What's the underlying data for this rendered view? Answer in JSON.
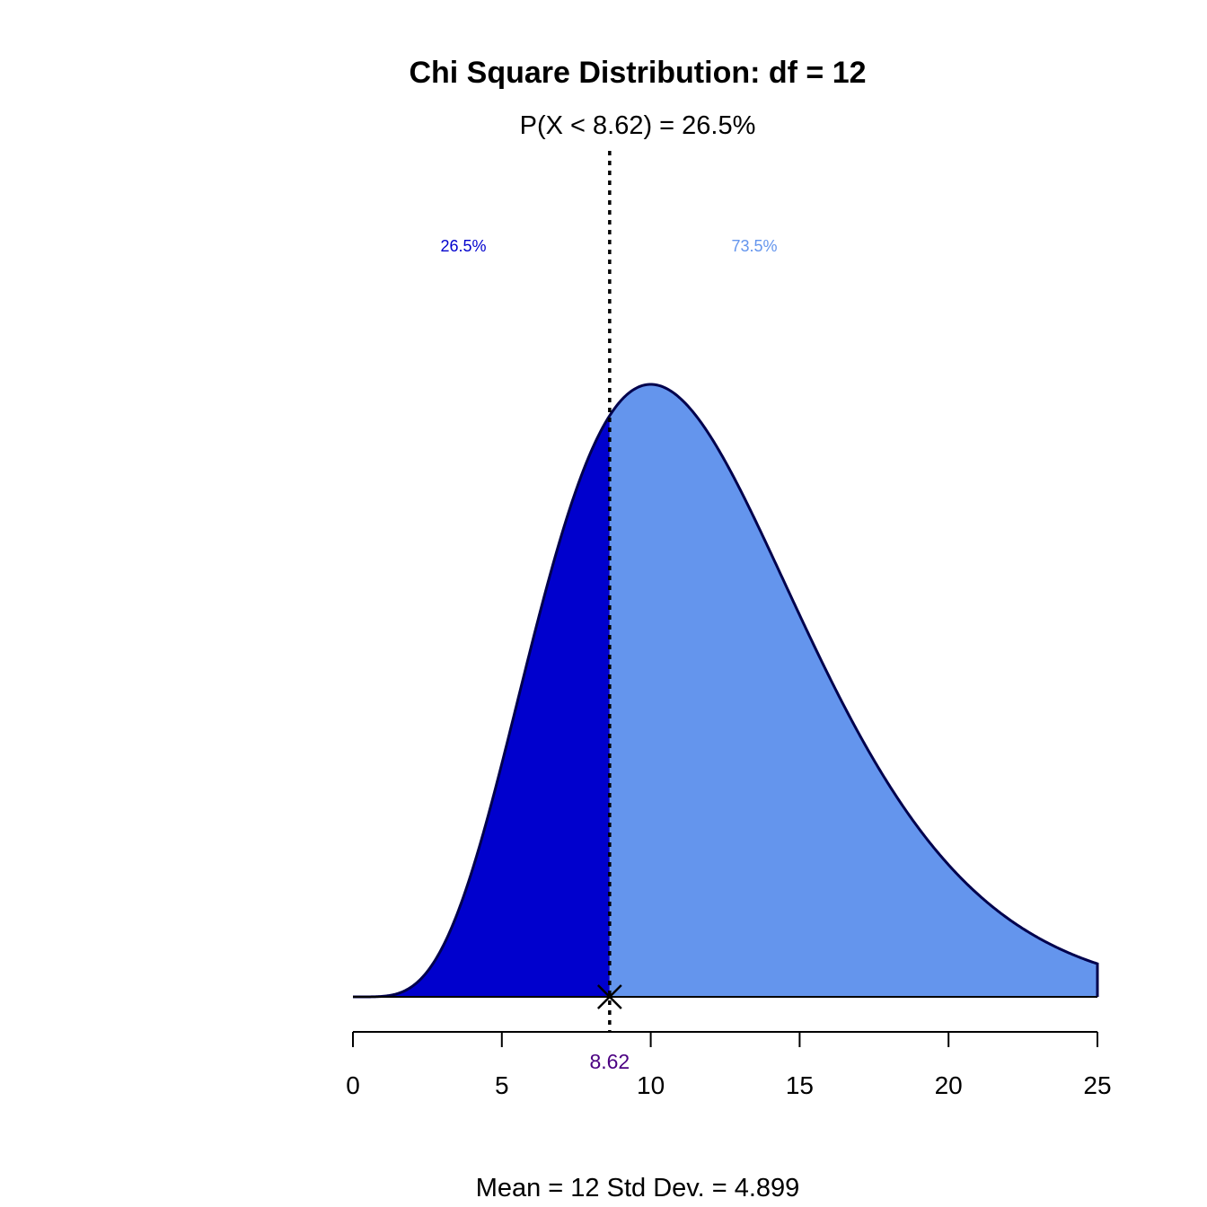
{
  "chart_data": {
    "type": "area",
    "title": "Chi Square Distribution: df = 12",
    "subtitle": "P(X < 8.62) = 26.5%",
    "df": 12,
    "cutoff": 8.62,
    "cutoff_label": "8.62",
    "left_area_label": "26.5%",
    "right_area_label": "73.5%",
    "footer": "Mean = 12  Std Dev. = 4.899",
    "xlim": [
      0,
      25
    ],
    "x_ticks": [
      0,
      5,
      10,
      15,
      20,
      25
    ],
    "x_tick_labels": [
      "0",
      "5",
      "10",
      "15",
      "20",
      "25"
    ],
    "grid": false,
    "colors": {
      "left_fill": "#0000CD",
      "right_fill": "#6495ED",
      "outline": "#00004D",
      "left_label": "#0000CD",
      "right_label": "#6495ED",
      "cut_label": "#4B0082"
    }
  }
}
